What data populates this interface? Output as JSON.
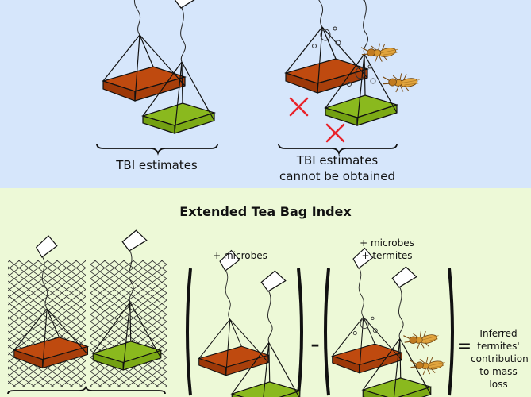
{
  "top": {
    "left_caption": "TBI estimates",
    "right_caption_line1": "TBI estimates",
    "right_caption_line2": "cannot be obtained"
  },
  "bottom": {
    "title": "Extended Tea Bag Index",
    "label_microbes": "+ microbes",
    "label_microbes_termites_line1": "+ microbes",
    "label_microbes_termites_line2": "+ termites",
    "minus_sign": "–",
    "equals_sign": "=",
    "result_lines": [
      "Inferred",
      "termites'",
      "contribution",
      "to mass",
      "loss"
    ]
  },
  "colors": {
    "top_panel_bg": "#d6e6fb",
    "bottom_panel_bg": "#edf9d7",
    "red_tea": "#b54610",
    "green_tea": "#86b31b",
    "cross_red": "#e8232a",
    "termite": "#e0a43c"
  },
  "icons": [
    "tea-bag-red",
    "tea-bag-green",
    "termite",
    "red-cross",
    "mesh-bag",
    "curly-brace",
    "large-parenthesis"
  ]
}
